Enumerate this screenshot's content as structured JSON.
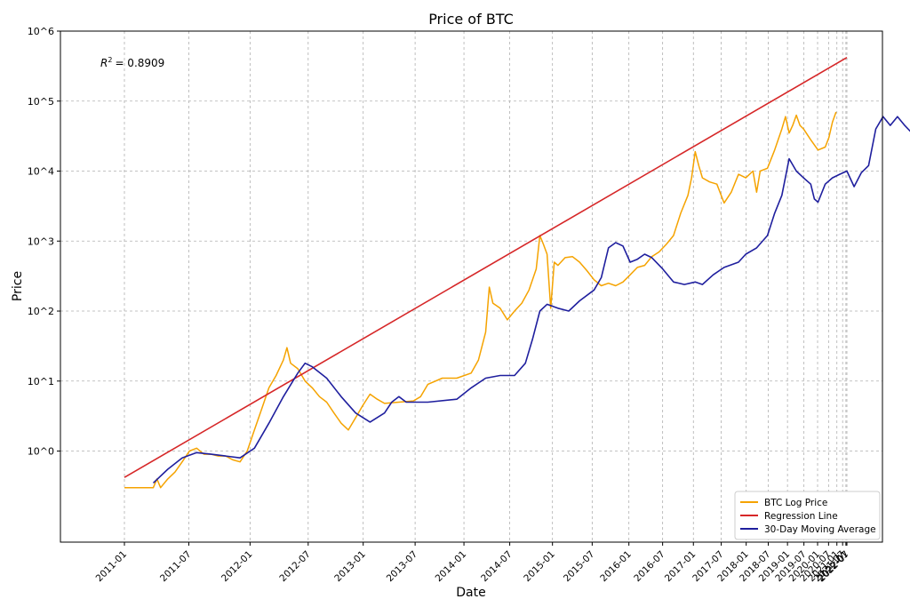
{
  "chart_data": {
    "type": "line",
    "title": "Price of BTC",
    "xlabel": "Date",
    "ylabel": "Price",
    "y_scale": "log",
    "ylim": [
      0.05,
      1000000
    ],
    "grid": true,
    "annotation": "= 0.8909",
    "annotation_symbol": "R",
    "annotation_sup": "2",
    "y_ticks": [
      {
        "value": 1,
        "label": "10^0"
      },
      {
        "value": 10,
        "label": "10^1"
      },
      {
        "value": 100,
        "label": "10^2"
      },
      {
        "value": 1000,
        "label": "10^3"
      },
      {
        "value": 10000,
        "label": "10^4"
      },
      {
        "value": 100000,
        "label": "10^5"
      },
      {
        "value": 1000000,
        "label": "10^6"
      }
    ],
    "x_ticks": [
      {
        "label": "2011-01"
      },
      {
        "label": "2011-07"
      },
      {
        "label": "2012-01"
      },
      {
        "label": "2012-07"
      },
      {
        "label": "2013-01"
      },
      {
        "label": "2013-07"
      },
      {
        "label": "2014-01"
      },
      {
        "label": "2014-07"
      },
      {
        "label": "2015-01"
      },
      {
        "label": "2015-07"
      },
      {
        "label": "2016-01"
      },
      {
        "label": "2016-07"
      },
      {
        "label": "2017-01"
      },
      {
        "label": "2017-07"
      },
      {
        "label": "2018-01"
      },
      {
        "label": "2018-07"
      },
      {
        "label": "2019-01"
      },
      {
        "label": "2019-07"
      },
      {
        "label": "2020-01"
      },
      {
        "label": "2020-07"
      },
      {
        "label": "2021-01"
      },
      {
        "label": "2021-07"
      },
      {
        "label": "2022-01"
      },
      {
        "label": "2022-07"
      }
    ],
    "legend_position": "bottom-right",
    "series": [
      {
        "name": "BTC Log Price",
        "color": "#f5a300",
        "points": [
          [
            0.0,
            0.3
          ],
          [
            0.04,
            0.3
          ],
          [
            0.045,
            0.4
          ],
          [
            0.05,
            0.3
          ],
          [
            0.06,
            0.4
          ],
          [
            0.07,
            0.5
          ],
          [
            0.08,
            0.7
          ],
          [
            0.09,
            1.0
          ],
          [
            0.1,
            1.1
          ],
          [
            0.11,
            0.9
          ],
          [
            0.12,
            0.9
          ],
          [
            0.13,
            0.85
          ],
          [
            0.14,
            0.85
          ],
          [
            0.15,
            0.75
          ],
          [
            0.16,
            0.7
          ],
          [
            0.17,
            1.0
          ],
          [
            0.18,
            2.0
          ],
          [
            0.19,
            4.0
          ],
          [
            0.2,
            8.0
          ],
          [
            0.21,
            12.0
          ],
          [
            0.22,
            20.0
          ],
          [
            0.225,
            30.0
          ],
          [
            0.23,
            18.0
          ],
          [
            0.24,
            15.0
          ],
          [
            0.25,
            10.0
          ],
          [
            0.26,
            8.0
          ],
          [
            0.27,
            6.0
          ],
          [
            0.28,
            5.0
          ],
          [
            0.29,
            3.5
          ],
          [
            0.3,
            2.5
          ],
          [
            0.31,
            2.0
          ],
          [
            0.32,
            3.0
          ],
          [
            0.33,
            4.5
          ],
          [
            0.34,
            6.5
          ],
          [
            0.35,
            5.5
          ],
          [
            0.36,
            4.8
          ],
          [
            0.38,
            5.0
          ],
          [
            0.4,
            5.2
          ],
          [
            0.41,
            6.0
          ],
          [
            0.42,
            9.0
          ],
          [
            0.44,
            11.0
          ],
          [
            0.46,
            11.0
          ],
          [
            0.48,
            13.0
          ],
          [
            0.49,
            20.0
          ],
          [
            0.5,
            50.0
          ],
          [
            0.505,
            220.0
          ],
          [
            0.51,
            130.0
          ],
          [
            0.52,
            110.0
          ],
          [
            0.53,
            75.0
          ],
          [
            0.54,
            100.0
          ],
          [
            0.55,
            130.0
          ],
          [
            0.56,
            200.0
          ],
          [
            0.57,
            400.0
          ],
          [
            0.575,
            1200.0
          ],
          [
            0.58,
            900.0
          ],
          [
            0.585,
            650.0
          ],
          [
            0.59,
            110.0
          ],
          [
            0.595,
            500.0
          ],
          [
            0.6,
            450.0
          ],
          [
            0.61,
            580.0
          ],
          [
            0.62,
            600.0
          ],
          [
            0.63,
            500.0
          ],
          [
            0.64,
            380.0
          ],
          [
            0.65,
            280.0
          ],
          [
            0.66,
            230.0
          ],
          [
            0.67,
            250.0
          ],
          [
            0.68,
            230.0
          ],
          [
            0.69,
            260.0
          ],
          [
            0.7,
            330.0
          ],
          [
            0.71,
            420.0
          ],
          [
            0.72,
            450.0
          ],
          [
            0.73,
            600.0
          ],
          [
            0.74,
            700.0
          ],
          [
            0.75,
            900.0
          ],
          [
            0.76,
            1200.0
          ],
          [
            0.77,
            2500.0
          ],
          [
            0.78,
            4500.0
          ],
          [
            0.785,
            8000.0
          ],
          [
            0.79,
            19000.0
          ],
          [
            0.795,
            12000.0
          ],
          [
            0.8,
            8000.0
          ],
          [
            0.81,
            7000.0
          ],
          [
            0.82,
            6500.0
          ],
          [
            0.83,
            3500.0
          ],
          [
            0.84,
            5000.0
          ],
          [
            0.85,
            9000.0
          ],
          [
            0.86,
            8000.0
          ],
          [
            0.87,
            10000.0
          ],
          [
            0.875,
            5000.0
          ],
          [
            0.88,
            10000.0
          ],
          [
            0.89,
            11000.0
          ],
          [
            0.9,
            20000.0
          ],
          [
            0.91,
            40000.0
          ],
          [
            0.915,
            60000.0
          ],
          [
            0.92,
            35000.0
          ],
          [
            0.925,
            45000.0
          ],
          [
            0.93,
            63000.0
          ],
          [
            0.935,
            45000.0
          ],
          [
            0.94,
            40000.0
          ],
          [
            0.95,
            28000.0
          ],
          [
            0.96,
            20000.0
          ],
          [
            0.97,
            22000.0
          ],
          [
            0.975,
            30000.0
          ],
          [
            0.98,
            50000.0
          ],
          [
            0.985,
            70000.0
          ]
        ]
      },
      {
        "name": "Regression Line",
        "color": "#d62728",
        "points": [
          [
            0.0,
            0.42
          ],
          [
            1.0,
            420000.0
          ]
        ]
      },
      {
        "name": "30-Day Moving Average",
        "color": "#1f1f9e",
        "points": [
          [
            0.04,
            0.35
          ],
          [
            0.06,
            0.55
          ],
          [
            0.08,
            0.8
          ],
          [
            0.1,
            0.95
          ],
          [
            0.12,
            0.9
          ],
          [
            0.14,
            0.85
          ],
          [
            0.16,
            0.8
          ],
          [
            0.18,
            1.1
          ],
          [
            0.2,
            2.5
          ],
          [
            0.22,
            6.0
          ],
          [
            0.24,
            13.0
          ],
          [
            0.25,
            18.0
          ],
          [
            0.26,
            16.0
          ],
          [
            0.28,
            11.0
          ],
          [
            0.3,
            6.0
          ],
          [
            0.32,
            3.5
          ],
          [
            0.34,
            2.6
          ],
          [
            0.36,
            3.5
          ],
          [
            0.37,
            5.0
          ],
          [
            0.38,
            6.0
          ],
          [
            0.39,
            5.0
          ],
          [
            0.42,
            5.0
          ],
          [
            0.46,
            5.5
          ],
          [
            0.48,
            8.0
          ],
          [
            0.5,
            11.0
          ],
          [
            0.52,
            12.0
          ],
          [
            0.54,
            12.0
          ],
          [
            0.555,
            18.0
          ],
          [
            0.565,
            40.0
          ],
          [
            0.575,
            100.0
          ],
          [
            0.585,
            125.0
          ],
          [
            0.6,
            110.0
          ],
          [
            0.615,
            100.0
          ],
          [
            0.63,
            140.0
          ],
          [
            0.65,
            200.0
          ],
          [
            0.66,
            300.0
          ],
          [
            0.67,
            800.0
          ],
          [
            0.68,
            950.0
          ],
          [
            0.69,
            850.0
          ],
          [
            0.7,
            500.0
          ],
          [
            0.71,
            550.0
          ],
          [
            0.72,
            650.0
          ],
          [
            0.73,
            580.0
          ],
          [
            0.745,
            400.0
          ],
          [
            0.76,
            260.0
          ],
          [
            0.775,
            240.0
          ],
          [
            0.79,
            260.0
          ],
          [
            0.8,
            240.0
          ],
          [
            0.815,
            330.0
          ],
          [
            0.83,
            420.0
          ],
          [
            0.85,
            500.0
          ],
          [
            0.86,
            650.0
          ],
          [
            0.875,
            800.0
          ],
          [
            0.89,
            1200.0
          ],
          [
            0.9,
            2500.0
          ],
          [
            0.91,
            4500.0
          ],
          [
            0.92,
            15000.0
          ],
          [
            0.93,
            10000.0
          ],
          [
            0.94,
            8000.0
          ],
          [
            0.95,
            6500.0
          ],
          [
            0.955,
            4000.0
          ],
          [
            0.96,
            3600.0
          ],
          [
            0.97,
            6500.0
          ],
          [
            0.98,
            8000.0
          ],
          [
            0.99,
            9000.0
          ],
          [
            1.0,
            10000.0
          ],
          [
            1.01,
            6000.0
          ],
          [
            1.02,
            9500.0
          ],
          [
            1.03,
            12000.0
          ],
          [
            1.04,
            40000.0
          ],
          [
            1.05,
            60000.0
          ],
          [
            1.06,
            45000.0
          ],
          [
            1.07,
            60000.0
          ],
          [
            1.08,
            45000.0
          ],
          [
            1.09,
            35000.0
          ],
          [
            1.1,
            25000.0
          ],
          [
            1.11,
            18000.0
          ],
          [
            1.12,
            25000.0
          ],
          [
            1.13,
            50000.0
          ]
        ]
      }
    ]
  }
}
